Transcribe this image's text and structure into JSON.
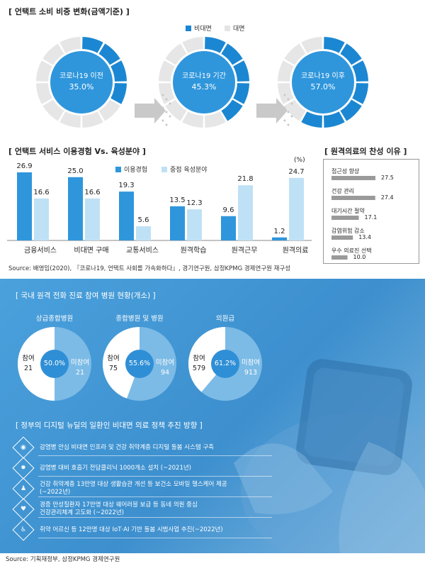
{
  "section1": {
    "title": "[ 언택트 소비 비중 변화(금액기준) ]",
    "legend": [
      {
        "label": "비대면",
        "color": "#1b87d2"
      },
      {
        "label": "대면",
        "color": "#e9e9e9"
      }
    ]
  },
  "section2": {
    "title": "[ 언택트 서비스 이용경험 Vs. 육성분야 ]",
    "unit": "(%)",
    "legend": [
      {
        "label": "이용경험",
        "color": "#2f96dc"
      },
      {
        "label": "중점 육성분야",
        "color": "#bfe1f5"
      }
    ]
  },
  "section3": {
    "title": "[ 원격의료의 찬성 이유 ]"
  },
  "source1": "Source: 배영임(2020), 『코로나19, 언택트 사회를 가속화하다』, 경기연구원, 삼정KPMG 경제연구원 재구성",
  "panel": {
    "title": "[ 국내 원격 전화 진료 참여 병원 현황(개소) ]",
    "pies": [
      {
        "title": "상급종합병원",
        "pct": "50.0%",
        "a_label": "참여",
        "a_val": "21",
        "b_label": "미참여",
        "b_val": "21",
        "a": 21,
        "b": 21
      },
      {
        "title": "종합병원 및 병원",
        "pct": "55.6%",
        "a_label": "참여",
        "a_val": "75",
        "b_label": "미참여",
        "b_val": "94",
        "a": 75,
        "b": 94
      },
      {
        "title": "의원급",
        "pct": "61.2%",
        "a_label": "참여",
        "a_val": "579",
        "b_label": "미참여",
        "b_val": "913",
        "a": 579,
        "b": 913
      }
    ],
    "policy_title": "[ 정부의 디지털 뉴딜의 일환인 비대면 의료 정책 추진 방향 ]",
    "policies": [
      {
        "icon": "eye-icon",
        "glyph": "◉",
        "text": "감염병 안심 비대면 인프라 및 건강 취약계층 디지털 돌봄 시스템 구축"
      },
      {
        "icon": "virus-icon",
        "glyph": "✹",
        "text": "감염병 대비 호흡기 전담클리닉 1000개소 설치 (~2021년)"
      },
      {
        "icon": "person-icon",
        "glyph": "♟",
        "text": "건강 취약계층 13만명 대상 생활습관 개선 등 보건소 모바일 헬스케어 제공",
        "text2": "(~2022년)"
      },
      {
        "icon": "heart-rate-icon",
        "glyph": "♥",
        "text": "경증 만성질환자 17만명 대상 웨어러블 보급 등 동네 의원 중심",
        "text2": "건강관리체계 고도화 (~2022년)"
      },
      {
        "icon": "wheelchair-icon",
        "glyph": "♿",
        "text": "취약 어르신 등 12만명 대상 IoT·AI 기반 돌봄 시범사업 추진(~2022년)"
      }
    ]
  },
  "source2": "Source: 기획재정부, 삼정KPMG 경제연구원",
  "chart_data": [
    {
      "type": "pie",
      "title": "[ 언택트 소비 비중 변화(금액기준) ]",
      "legend": [
        "비대면",
        "대면"
      ],
      "categories": [
        "코로나19 이전",
        "코로나19 기간",
        "코로나19 이후"
      ],
      "values": [
        35.0,
        45.3,
        57.0
      ],
      "value_labels": [
        "35.0%",
        "45.3%",
        "57.0%"
      ]
    },
    {
      "type": "bar",
      "title": "[ 언택트 서비스 이용경험 Vs. 육성분야 ]",
      "categories": [
        "금융서비스",
        "비대면 구매",
        "교통서비스",
        "원격학습",
        "원격근무",
        "원격의료"
      ],
      "series": [
        {
          "name": "이용경험",
          "values": [
            26.9,
            25.0,
            19.3,
            13.5,
            9.6,
            1.2
          ],
          "labels": [
            "26.9",
            "25.0",
            "19.3",
            "13.5",
            "9.6",
            "1.2"
          ]
        },
        {
          "name": "중점 육성분야",
          "values": [
            16.6,
            16.6,
            5.6,
            12.3,
            21.8,
            24.7
          ],
          "labels": [
            "16.6",
            "16.6",
            "5.6",
            "12.3",
            "21.8",
            "24.7"
          ]
        }
      ],
      "ylim": [
        0,
        30
      ],
      "ylabel": "(%)"
    },
    {
      "type": "bar",
      "title": "[ 원격의료의 찬성 이유 ]",
      "categories": [
        "접근성 향상",
        "건강 관리",
        "대기시간 절약",
        "감염위험 감소",
        "우수 의료진 선택"
      ],
      "values": [
        27.5,
        27.4,
        17.1,
        13.4,
        10.0
      ],
      "labels": [
        "27.5",
        "27.4",
        "17.1",
        "13.4",
        "10.0"
      ],
      "xlim": [
        0,
        30
      ]
    }
  ]
}
